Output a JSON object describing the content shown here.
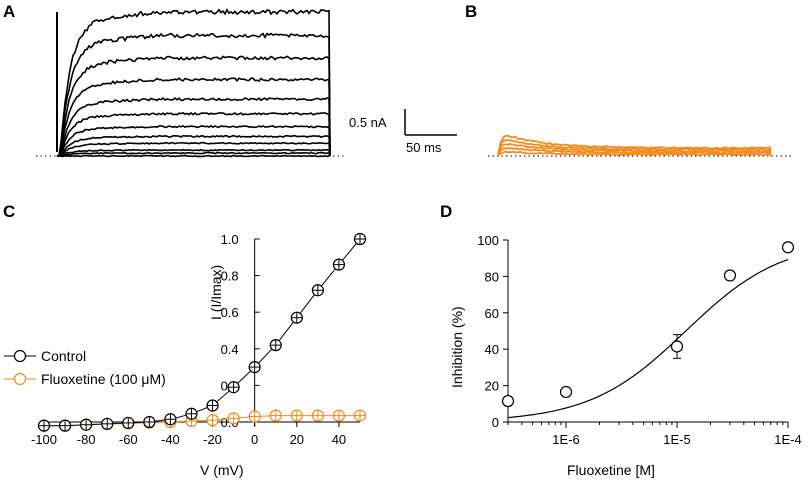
{
  "colors": {
    "control": "#000000",
    "fluoxetine": "#f28a1c",
    "axis": "#000000"
  },
  "panels": {
    "a": {
      "letter": "A"
    },
    "b": {
      "letter": "B"
    },
    "c": {
      "letter": "C"
    },
    "d": {
      "letter": "D"
    }
  },
  "scale_bar": {
    "current_label": "0.5 nA",
    "time_label": "50 ms"
  },
  "chart_data": [
    {
      "panel": "A",
      "type": "line",
      "description_series": "Control whole-cell current traces",
      "steady_levels_nA": [
        0.0,
        0.03,
        0.06,
        0.13,
        0.2,
        0.3,
        0.43,
        0.58,
        0.78,
        1.0,
        1.23,
        1.47
      ],
      "color": "control"
    },
    {
      "panel": "B",
      "type": "line",
      "description_series": "Current traces with fluoxetine",
      "peak_levels_nA": [
        0.03,
        0.06,
        0.09,
        0.12,
        0.15
      ],
      "steady_levels_nA": [
        0.01,
        0.02,
        0.03,
        0.04,
        0.05
      ],
      "color": "fluoxetine"
    },
    {
      "panel": "C",
      "type": "line",
      "xlabel": "V (mV)",
      "ylabel": "I (I/Imax)",
      "xlim": [
        -100,
        50
      ],
      "ylim": [
        -0.03,
        1.0
      ],
      "xticks": [
        -100,
        -80,
        -60,
        -40,
        -20,
        0,
        20,
        40
      ],
      "yticks": [
        0.2,
        0.4,
        0.6,
        0.8,
        1.0
      ],
      "xtick_labels": [
        "-100",
        "-80",
        "-60",
        "-40",
        "-20",
        "0",
        "20",
        "40"
      ],
      "ytick_labels": [
        "0.2",
        "0.4",
        "0.6",
        "0.8",
        "1.0"
      ],
      "zero_label": "0.0",
      "x": [
        -100,
        -90,
        -80,
        -70,
        -60,
        -50,
        -40,
        -30,
        -20,
        -10,
        0,
        10,
        20,
        30,
        40,
        50
      ],
      "series": [
        {
          "name": "Control",
          "color": "control",
          "values": [
            -0.02,
            -0.02,
            -0.015,
            -0.01,
            -0.005,
            0.0,
            0.015,
            0.045,
            0.09,
            0.19,
            0.3,
            0.42,
            0.57,
            0.72,
            0.86,
            1.0
          ]
        },
        {
          "name": "Fluoxetine (100 μM)",
          "color": "fluoxetine",
          "values": [
            -0.02,
            -0.02,
            -0.015,
            -0.012,
            -0.008,
            -0.004,
            0.0,
            0.005,
            0.01,
            0.02,
            0.03,
            0.035,
            0.035,
            0.035,
            0.035,
            0.035
          ]
        }
      ],
      "legend": [
        "Control",
        "Fluoxetine (100 μM)"
      ]
    },
    {
      "panel": "D",
      "type": "scatter",
      "xlabel": "Fluoxetine [M]",
      "ylabel": "Inhibition (%)",
      "xscale": "log",
      "xlim": [
        3e-07,
        0.0001
      ],
      "ylim": [
        0,
        100
      ],
      "xticks": [
        1e-06,
        1e-05,
        0.0001
      ],
      "xtick_labels": [
        "1E-6",
        "1E-5",
        "1E-4"
      ],
      "yticks": [
        0,
        20,
        40,
        60,
        80,
        100
      ],
      "ytick_labels": [
        "0",
        "20",
        "40",
        "60",
        "80",
        "100"
      ],
      "points": [
        {
          "x": 3e-07,
          "y": 11.5,
          "err": 2.5
        },
        {
          "x": 1e-06,
          "y": 16.5,
          "err": 2.0
        },
        {
          "x": 1e-05,
          "y": 41.5,
          "err": 6.5
        },
        {
          "x": 3e-05,
          "y": 80.5,
          "err": 2.5
        },
        {
          "x": 0.0001,
          "y": 96.0,
          "err": 1.5
        }
      ],
      "fit": {
        "model": "hill",
        "ic50": 1.2e-05,
        "hill": 1.0,
        "max": 100
      }
    }
  ]
}
